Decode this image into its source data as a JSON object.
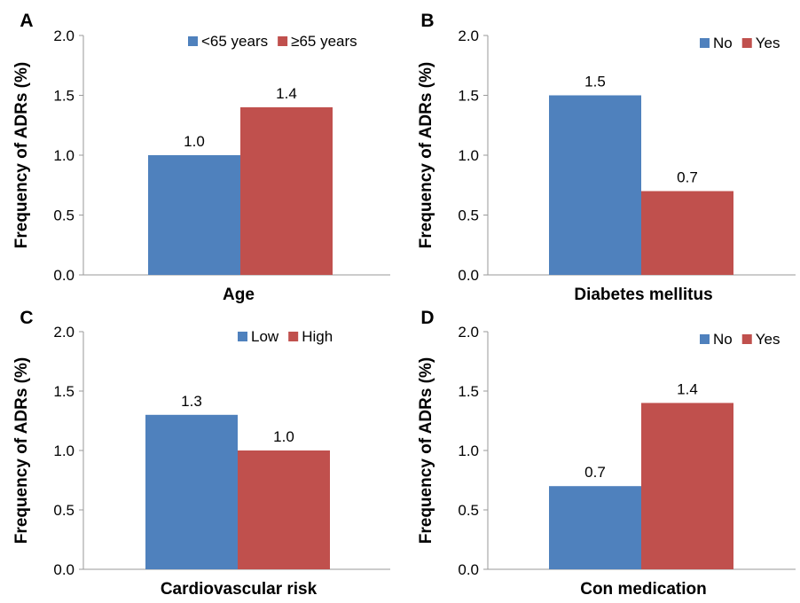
{
  "colors": {
    "blue": "#4F81BD",
    "red": "#C0504D",
    "axis": "#9a9a9a"
  },
  "chart_data": [
    {
      "panel": "A",
      "type": "bar",
      "xlabel": "Age",
      "ylabel": "Frequency of ADRs (%)",
      "ylim": [
        0,
        2.0
      ],
      "yticks": [
        "0.0",
        "0.5",
        "1.0",
        "1.5",
        "2.0"
      ],
      "legend_position": "top-right",
      "series": [
        {
          "name": "<65 years",
          "values": [
            1.0
          ],
          "label": "1.0"
        },
        {
          "name": "≥65 years",
          "values": [
            1.4
          ],
          "label": "1.4"
        }
      ]
    },
    {
      "panel": "B",
      "type": "bar",
      "xlabel": "Diabetes mellitus",
      "ylabel": "Frequency of ADRs (%)",
      "ylim": [
        0,
        2.0
      ],
      "yticks": [
        "0.0",
        "0.5",
        "1.0",
        "1.5",
        "2.0"
      ],
      "legend_position": "top-right",
      "series": [
        {
          "name": "No",
          "values": [
            1.5
          ],
          "label": "1.5"
        },
        {
          "name": "Yes",
          "values": [
            0.7
          ],
          "label": "0.7"
        }
      ]
    },
    {
      "panel": "C",
      "type": "bar",
      "xlabel": "Cardiovascular risk",
      "ylabel": "Frequency of ADRs (%)",
      "ylim": [
        0,
        2.0
      ],
      "yticks": [
        "0.0",
        "0.5",
        "1.0",
        "1.5",
        "2.0"
      ],
      "legend_position": "top-right",
      "series": [
        {
          "name": "Low",
          "values": [
            1.3
          ],
          "label": "1.3"
        },
        {
          "name": "High",
          "values": [
            1.0
          ],
          "label": "1.0"
        }
      ]
    },
    {
      "panel": "D",
      "type": "bar",
      "xlabel": "Con medication",
      "ylabel": "Frequency of ADRs (%)",
      "ylim": [
        0,
        2.0
      ],
      "yticks": [
        "0.0",
        "0.5",
        "1.0",
        "1.5",
        "2.0"
      ],
      "legend_position": "top-right",
      "series": [
        {
          "name": "No",
          "values": [
            0.7
          ],
          "label": "0.7"
        },
        {
          "name": "Yes",
          "values": [
            1.4
          ],
          "label": "1.4"
        }
      ]
    }
  ]
}
